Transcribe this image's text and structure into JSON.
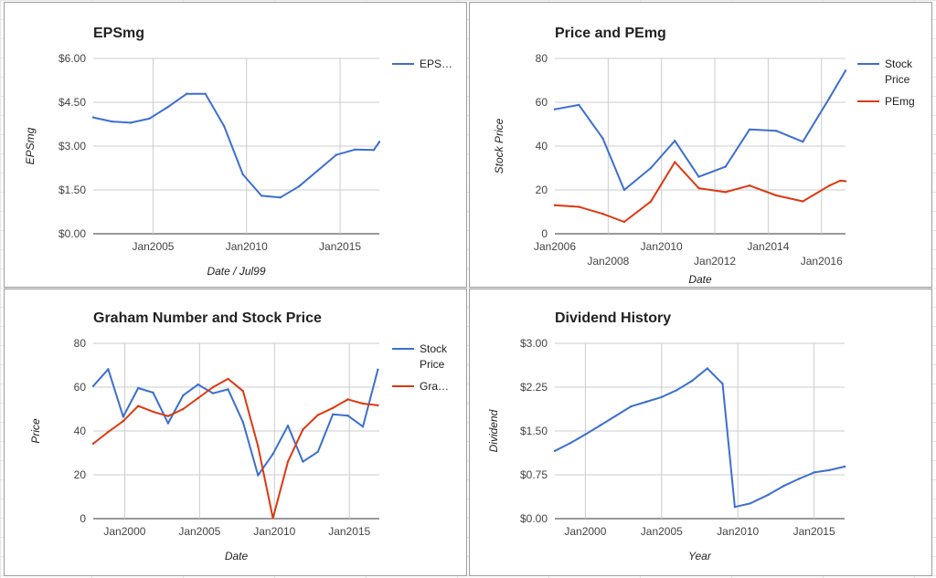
{
  "colors": {
    "blue": "#3c6fd0",
    "red": "#dc3912",
    "grid": "#cccccc"
  },
  "chart_data": [
    {
      "type": "line",
      "title": "EPSmg",
      "xlabel": "Date / Jul99",
      "ylabel": "EPSmg",
      "ylim": [
        0,
        6
      ],
      "y_ticks": [
        {
          "value": 0,
          "label": "$0.00"
        },
        {
          "value": 1.5,
          "label": "$1.50"
        },
        {
          "value": 3,
          "label": "$3.00"
        },
        {
          "value": 4.5,
          "label": "$4.50"
        },
        {
          "value": 6,
          "label": "$6.00"
        }
      ],
      "xlim": [
        2001.8,
        2017.1
      ],
      "x_ticks": [
        {
          "value": 2005,
          "label": "Jan2005"
        },
        {
          "value": 2010,
          "label": "Jan2010"
        },
        {
          "value": 2015,
          "label": "Jan2015"
        }
      ],
      "grid": true,
      "legend_position": "right",
      "series": [
        {
          "name": "EPS…",
          "color": "#3c6fd0",
          "points": [
            [
              2001.8,
              3.98
            ],
            [
              2002.8,
              3.84
            ],
            [
              2003.8,
              3.8
            ],
            [
              2004.8,
              3.94
            ],
            [
              2005.8,
              4.34
            ],
            [
              2006.8,
              4.79
            ],
            [
              2007.8,
              4.79
            ],
            [
              2008.8,
              3.68
            ],
            [
              2009.8,
              2.03
            ],
            [
              2010.8,
              1.3
            ],
            [
              2011.8,
              1.24
            ],
            [
              2012.8,
              1.62
            ],
            [
              2013.8,
              2.16
            ],
            [
              2014.8,
              2.7
            ],
            [
              2015.8,
              2.88
            ],
            [
              2016.8,
              2.87
            ],
            [
              2017.1,
              3.14
            ]
          ]
        }
      ]
    },
    {
      "type": "line",
      "title": "Price and PEmg",
      "xlabel": "Date",
      "ylabel": "Stock Price",
      "ylim": [
        0,
        80
      ],
      "y_ticks": [
        {
          "value": 0,
          "label": "0"
        },
        {
          "value": 20,
          "label": "20"
        },
        {
          "value": 40,
          "label": "40"
        },
        {
          "value": 60,
          "label": "60"
        },
        {
          "value": 80,
          "label": "80"
        }
      ],
      "xlim": [
        2006.0,
        2016.9
      ],
      "x_ticks": [
        {
          "value": 2006,
          "label": "Jan2006",
          "row": 0
        },
        {
          "value": 2008,
          "label": "Jan2008",
          "row": 1
        },
        {
          "value": 2010,
          "label": "Jan2010",
          "row": 0
        },
        {
          "value": 2012,
          "label": "Jan2012",
          "row": 1
        },
        {
          "value": 2014,
          "label": "Jan2014",
          "row": 0
        },
        {
          "value": 2016,
          "label": "Jan2016",
          "row": 1
        }
      ],
      "grid": true,
      "legend_position": "right",
      "series": [
        {
          "name": "Stock Price",
          "color": "#3c6fd0",
          "points": [
            [
              2006.0,
              56.8
            ],
            [
              2006.9,
              58.8
            ],
            [
              2007.8,
              43.5
            ],
            [
              2008.6,
              20.0
            ],
            [
              2009.6,
              30.0
            ],
            [
              2010.5,
              42.4
            ],
            [
              2011.4,
              26.0
            ],
            [
              2012.4,
              30.6
            ],
            [
              2013.3,
              47.6
            ],
            [
              2014.3,
              47.0
            ],
            [
              2015.3,
              42.0
            ],
            [
              2016.3,
              62.0
            ],
            [
              2016.9,
              74.4
            ]
          ]
        },
        {
          "name": "PEmg",
          "color": "#dc3912",
          "points": [
            [
              2006.0,
              13.0
            ],
            [
              2006.9,
              12.3
            ],
            [
              2007.8,
              9.1
            ],
            [
              2008.6,
              5.4
            ],
            [
              2009.6,
              14.7
            ],
            [
              2010.5,
              32.7
            ],
            [
              2011.4,
              20.8
            ],
            [
              2012.4,
              19.0
            ],
            [
              2013.3,
              22.0
            ],
            [
              2014.3,
              17.5
            ],
            [
              2015.3,
              14.8
            ],
            [
              2016.3,
              22.0
            ],
            [
              2016.7,
              24.2
            ],
            [
              2016.9,
              24.0
            ]
          ]
        }
      ]
    },
    {
      "type": "line",
      "title": "Graham Number and Stock Price",
      "xlabel": "Date",
      "ylabel": "Price",
      "ylim": [
        0,
        80
      ],
      "y_ticks": [
        {
          "value": 0,
          "label": "0"
        },
        {
          "value": 20,
          "label": "20"
        },
        {
          "value": 40,
          "label": "40"
        },
        {
          "value": 60,
          "label": "60"
        },
        {
          "value": 80,
          "label": "80"
        }
      ],
      "xlim": [
        1997.9,
        2017.0
      ],
      "x_ticks": [
        {
          "value": 2000,
          "label": "Jan2000"
        },
        {
          "value": 2005,
          "label": "Jan2005"
        },
        {
          "value": 2010,
          "label": "Jan2010"
        },
        {
          "value": 2015,
          "label": "Jan2015"
        }
      ],
      "grid": true,
      "legend_position": "right",
      "series": [
        {
          "name": "Stock Price",
          "color": "#3c6fd0",
          "points": [
            [
              1997.9,
              60.5
            ],
            [
              1998.9,
              68.2
            ],
            [
              1999.9,
              46.5
            ],
            [
              2000.9,
              59.6
            ],
            [
              2001.9,
              57.5
            ],
            [
              2002.9,
              43.5
            ],
            [
              2003.9,
              56.2
            ],
            [
              2004.9,
              61.2
            ],
            [
              2005.9,
              57.2
            ],
            [
              2006.9,
              59.0
            ],
            [
              2007.9,
              44.0
            ],
            [
              2008.9,
              19.8
            ],
            [
              2009.9,
              29.5
            ],
            [
              2010.9,
              42.4
            ],
            [
              2011.9,
              26.0
            ],
            [
              2012.9,
              30.5
            ],
            [
              2013.9,
              47.6
            ],
            [
              2014.9,
              47.0
            ],
            [
              2015.9,
              42.0
            ],
            [
              2016.9,
              68.0
            ]
          ]
        },
        {
          "name": "Gra…",
          "color": "#dc3912",
          "points": [
            [
              1997.9,
              34.2
            ],
            [
              1998.9,
              39.6
            ],
            [
              1999.9,
              44.5
            ],
            [
              2000.9,
              51.4
            ],
            [
              2001.9,
              48.8
            ],
            [
              2002.9,
              46.8
            ],
            [
              2003.9,
              50.0
            ],
            [
              2004.9,
              55.0
            ],
            [
              2005.9,
              60.0
            ],
            [
              2006.9,
              63.8
            ],
            [
              2007.9,
              58.2
            ],
            [
              2008.9,
              33.0
            ],
            [
              2009.9,
              0.2
            ],
            [
              2010.9,
              26.0
            ],
            [
              2011.9,
              40.7
            ],
            [
              2012.9,
              47.3
            ],
            [
              2013.9,
              50.5
            ],
            [
              2014.9,
              54.4
            ],
            [
              2015.9,
              52.5
            ],
            [
              2016.9,
              51.7
            ]
          ]
        }
      ]
    },
    {
      "type": "line",
      "title": "Dividend History",
      "xlabel": "Year",
      "ylabel": "Dividend",
      "ylim": [
        0,
        3
      ],
      "y_ticks": [
        {
          "value": 0,
          "label": "$0.00"
        },
        {
          "value": 0.75,
          "label": "$0.75"
        },
        {
          "value": 1.5,
          "label": "$1.50"
        },
        {
          "value": 2.25,
          "label": "$2.25"
        },
        {
          "value": 3,
          "label": "$3.00"
        }
      ],
      "xlim": [
        1998.0,
        2017.0
      ],
      "x_ticks": [
        {
          "value": 2000,
          "label": "Jan2000"
        },
        {
          "value": 2005,
          "label": "Jan2005"
        },
        {
          "value": 2010,
          "label": "Jan2010"
        },
        {
          "value": 2015,
          "label": "Jan2015"
        }
      ],
      "grid": true,
      "legend_position": "none",
      "series": [
        {
          "name": "",
          "color": "#3c6fd0",
          "points": [
            [
              1998.0,
              1.16
            ],
            [
              1999.0,
              1.29
            ],
            [
              2000.0,
              1.44
            ],
            [
              2001.0,
              1.6
            ],
            [
              2002.0,
              1.76
            ],
            [
              2003.0,
              1.92
            ],
            [
              2004.0,
              2.0
            ],
            [
              2005.0,
              2.08
            ],
            [
              2006.0,
              2.2
            ],
            [
              2007.0,
              2.36
            ],
            [
              2008.0,
              2.57
            ],
            [
              2009.0,
              2.31
            ],
            [
              2009.8,
              0.2
            ],
            [
              2010.8,
              0.26
            ],
            [
              2012.0,
              0.41
            ],
            [
              2013.0,
              0.56
            ],
            [
              2014.0,
              0.68
            ],
            [
              2015.0,
              0.79
            ],
            [
              2016.0,
              0.83
            ],
            [
              2017.0,
              0.89
            ]
          ]
        }
      ]
    }
  ]
}
